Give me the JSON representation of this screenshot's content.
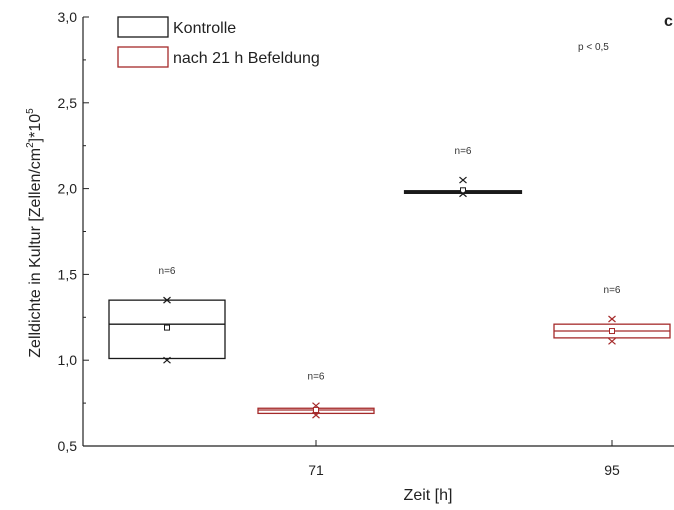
{
  "chart_data": {
    "type": "box",
    "xlabel": "Zeit [h]",
    "ylabel": "Zelldichte in Kultur [Zellen/cm²]*10⁵",
    "ylabel_parts": {
      "pre": "Zelldichte in Kultur [Zellen/cm",
      "sup1": "2",
      "mid": "]*10",
      "sup2": "5"
    },
    "ylim": [
      0.5,
      3.0
    ],
    "y_ticks": [
      "0,5",
      "1,0",
      "1,5",
      "2,0",
      "2,5",
      "3,0"
    ],
    "x_ticks": [
      "71",
      "95"
    ],
    "corner_label": "c",
    "annotation": "p < 0,5",
    "legend": {
      "placement": "top-left",
      "items": [
        {
          "label": "Kontrolle",
          "color": "#1a1a1a"
        },
        {
          "label": "nach 21 h Befeldung",
          "color": "#a52a2a"
        }
      ]
    },
    "boxes": [
      {
        "series": "Kontrolle",
        "color": "#1a1a1a",
        "group": "71",
        "pos": "left",
        "q1": 1.01,
        "median": 1.21,
        "q3": 1.35,
        "mean": 1.19,
        "markers": [
          1.35,
          1.0
        ],
        "n_label": "n=6"
      },
      {
        "series": "nach 21 h Befeldung",
        "color": "#a52a2a",
        "group": "71",
        "pos": "right",
        "q1": 0.69,
        "median": 0.71,
        "q3": 0.72,
        "mean": 0.71,
        "markers": [
          0.735,
          0.68
        ],
        "n_label": "n=6"
      },
      {
        "series": "Kontrolle",
        "color": "#1a1a1a",
        "group": "95",
        "pos": "left",
        "q1": 1.975,
        "median": 1.98,
        "q3": 1.985,
        "mean": 1.99,
        "markers": [
          2.05,
          1.97
        ],
        "n_label": "n=6"
      },
      {
        "series": "nach 21 h Befeldung",
        "color": "#a52a2a",
        "group": "95",
        "pos": "right",
        "q1": 1.13,
        "median": 1.17,
        "q3": 1.21,
        "mean": 1.17,
        "markers": [
          1.24,
          1.11
        ],
        "n_label": "n=6"
      }
    ]
  }
}
